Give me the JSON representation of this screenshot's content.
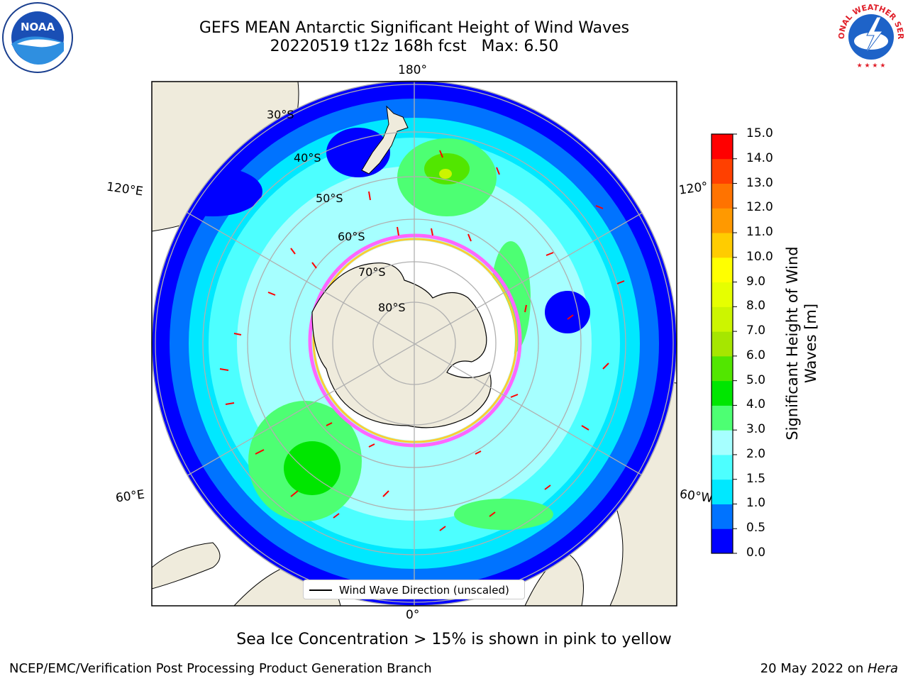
{
  "title": {
    "line1": "GEFS MEAN Antarctic Significant Height of Wind Waves",
    "line2": "20220519 t12z 168h fcst   Max: 6.50"
  },
  "map": {
    "projection": "south-polar-stereographic",
    "longitude_labels": {
      "top": "180°",
      "bottom": "0°",
      "left_upper": "120°E",
      "left_lower": "60°E",
      "right_upper": "120°",
      "right_lower": "60°W"
    },
    "latitude_labels": [
      "30°S",
      "40°S",
      "50°S",
      "60°S",
      "70°S",
      "80°S"
    ],
    "land_color": "#efebdc",
    "ice_edge_colors": [
      "#ff66ff",
      "#ffcc33"
    ],
    "vector_color": "#ff0000",
    "legend_label": "Wind Wave Direction (unscaled)"
  },
  "colorbar": {
    "title": "Significant Height of Wind Waves [m]",
    "ticks": [
      "0.0",
      "0.5",
      "1.0",
      "1.5",
      "2.0",
      "3.0",
      "4.0",
      "5.0",
      "6.0",
      "7.0",
      "8.0",
      "9.0",
      "10.0",
      "11.0",
      "12.0",
      "13.0",
      "14.0",
      "15.0"
    ],
    "colors": [
      "#0000ff",
      "#0073ff",
      "#00e8ff",
      "#4dffff",
      "#a6ffff",
      "#4dff73",
      "#00e600",
      "#52e600",
      "#a6e600",
      "#ccf500",
      "#e6ff00",
      "#ffff00",
      "#ffcc00",
      "#ff9900",
      "#ff7300",
      "#ff4000",
      "#ff0000"
    ]
  },
  "footnote": "Sea Ice Concentration > 15% is shown in pink to yellow",
  "footer": {
    "left": "NCEP/EMC/Verification Post Processing Product Generation Branch",
    "right_prefix": "20 May 2022 on ",
    "right_machine": "Hera"
  },
  "logos": {
    "left": "noaa-logo",
    "right": "nws-logo"
  }
}
